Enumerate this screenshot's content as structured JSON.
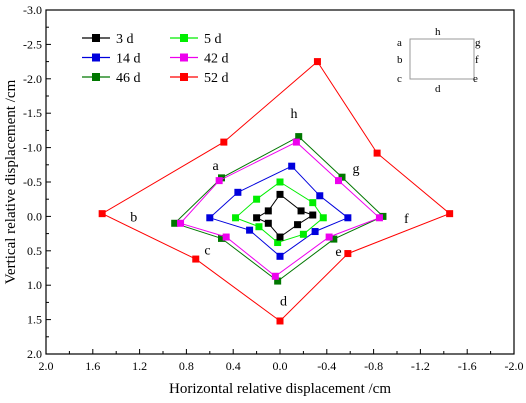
{
  "chart_data": {
    "type": "line",
    "xlabel": "Horizontal relative displacement /cm",
    "ylabel": "Vertical relative displacement /cm",
    "xlim": [
      2.0,
      -2.0
    ],
    "ylim": [
      2.0,
      -3.0
    ],
    "x_ticks": [
      "2.0",
      "1.6",
      "1.2",
      "0.8",
      "0.4",
      "0.0",
      "-0.4",
      "-0.8",
      "-1.2",
      "-1.6",
      "-2.0"
    ],
    "y_ticks": [
      "-3.0",
      "-2.5",
      "-2.0",
      "-1.5",
      "-1.0",
      "-0.5",
      "0.0",
      "0.5",
      "1.0",
      "1.5",
      "2.0"
    ],
    "point_order": [
      "h",
      "g",
      "f",
      "e",
      "d",
      "c",
      "b",
      "a"
    ],
    "series": [
      {
        "name": "3 d",
        "color": "#000000",
        "points": [
          [
            0.0,
            -0.32
          ],
          [
            -0.18,
            -0.08
          ],
          [
            -0.28,
            -0.02
          ],
          [
            -0.15,
            0.12
          ],
          [
            0.0,
            0.3
          ],
          [
            0.1,
            0.1
          ],
          [
            0.2,
            0.02
          ],
          [
            0.1,
            -0.08
          ]
        ]
      },
      {
        "name": "5 d",
        "color": "#00ee00",
        "points": [
          [
            0.0,
            -0.5
          ],
          [
            -0.28,
            -0.2
          ],
          [
            -0.37,
            0.02
          ],
          [
            -0.2,
            0.26
          ],
          [
            0.02,
            0.38
          ],
          [
            0.18,
            0.15
          ],
          [
            0.38,
            0.02
          ],
          [
            0.2,
            -0.25
          ]
        ]
      },
      {
        "name": "14 d",
        "color": "#0000dd",
        "points": [
          [
            -0.1,
            -0.73
          ],
          [
            -0.34,
            -0.3
          ],
          [
            -0.58,
            0.02
          ],
          [
            -0.3,
            0.22
          ],
          [
            0.0,
            0.58
          ],
          [
            0.26,
            0.2
          ],
          [
            0.6,
            0.02
          ],
          [
            0.36,
            -0.35
          ]
        ]
      },
      {
        "name": "42 d",
        "color": "#ee00ee",
        "points": [
          [
            -0.14,
            -1.08
          ],
          [
            -0.5,
            -0.52
          ],
          [
            -0.85,
            0.02
          ],
          [
            -0.42,
            0.3
          ],
          [
            0.04,
            0.87
          ],
          [
            0.46,
            0.3
          ],
          [
            0.85,
            0.1
          ],
          [
            0.52,
            -0.52
          ]
        ]
      },
      {
        "name": "46 d",
        "color": "#007700",
        "points": [
          [
            -0.16,
            -1.16
          ],
          [
            -0.53,
            -0.57
          ],
          [
            -0.88,
            0.0
          ],
          [
            -0.46,
            0.33
          ],
          [
            0.02,
            0.94
          ],
          [
            0.5,
            0.32
          ],
          [
            0.9,
            0.1
          ],
          [
            0.5,
            -0.56
          ]
        ]
      },
      {
        "name": "52 d",
        "color": "#ff0000",
        "points": [
          [
            -0.32,
            -2.25
          ],
          [
            -0.83,
            -0.92
          ],
          [
            -1.45,
            -0.04
          ],
          [
            -0.58,
            0.54
          ],
          [
            0.0,
            1.52
          ],
          [
            0.72,
            0.62
          ],
          [
            1.52,
            -0.04
          ],
          [
            0.48,
            -1.08
          ]
        ]
      }
    ],
    "point_labels": [
      {
        "text": "h",
        "x": -0.12,
        "y": -1.5
      },
      {
        "text": "a",
        "x": 0.55,
        "y": -0.75
      },
      {
        "text": "g",
        "x": -0.65,
        "y": -0.7
      },
      {
        "text": "b",
        "x": 1.25,
        "y": 0.0
      },
      {
        "text": "f",
        "x": -1.08,
        "y": 0.02
      },
      {
        "text": "c",
        "x": 0.62,
        "y": 0.48
      },
      {
        "text": "e",
        "x": -0.5,
        "y": 0.5
      },
      {
        "text": "d",
        "x": -0.03,
        "y": 1.22
      }
    ],
    "inset": {
      "labels": [
        "a",
        "h",
        "g",
        "b",
        "f",
        "c",
        "d",
        "e"
      ]
    }
  }
}
